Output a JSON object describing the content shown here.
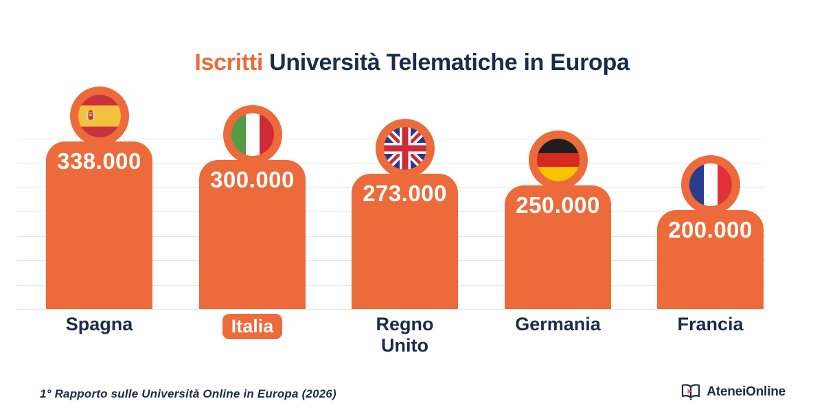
{
  "title": {
    "highlight": "Iscritti",
    "rest": "Università Telematiche in Europa"
  },
  "chart_data": {
    "type": "bar",
    "title": "Iscritti Università Telematiche in Europa",
    "categories": [
      "Spagna",
      "Italia",
      "Regno Unito",
      "Germania",
      "Francia"
    ],
    "values": [
      338000,
      300000,
      273000,
      250000,
      200000
    ],
    "value_labels": [
      "338.000",
      "300.000",
      "273.000",
      "250.000",
      "200.000"
    ],
    "highlighted_category": "Italia",
    "xlabel": "",
    "ylabel": "",
    "y_axis_tick_labels": "none",
    "grid": "horizontal",
    "legend": "none",
    "bar_color": "#ED6A3A",
    "flags": [
      "spain",
      "italy",
      "united-kingdom",
      "germany",
      "france"
    ]
  },
  "bars": [
    {
      "label": "Spagna",
      "value_label": "338.000",
      "value": 338000,
      "highlight": false
    },
    {
      "label": "Italia",
      "value_label": "300.000",
      "value": 300000,
      "highlight": true
    },
    {
      "label": "Regno Unito",
      "value_label": "273.000",
      "value": 273000,
      "highlight": false
    },
    {
      "label": "Germania",
      "value_label": "250.000",
      "value": 250000,
      "highlight": false
    },
    {
      "label": "Francia",
      "value_label": "200.000",
      "value": 200000,
      "highlight": false
    }
  ],
  "footer": {
    "source": "1° Rapporto sulle Università Online in Europa (2026)",
    "brand": "AteneiOnline"
  },
  "colors": {
    "accent_orange": "#ED6A3A",
    "text_navy": "#1C2B4A",
    "gridline": "#E5E5E5",
    "value_text": "#FFFFFF",
    "background": "#FFFFFF"
  }
}
